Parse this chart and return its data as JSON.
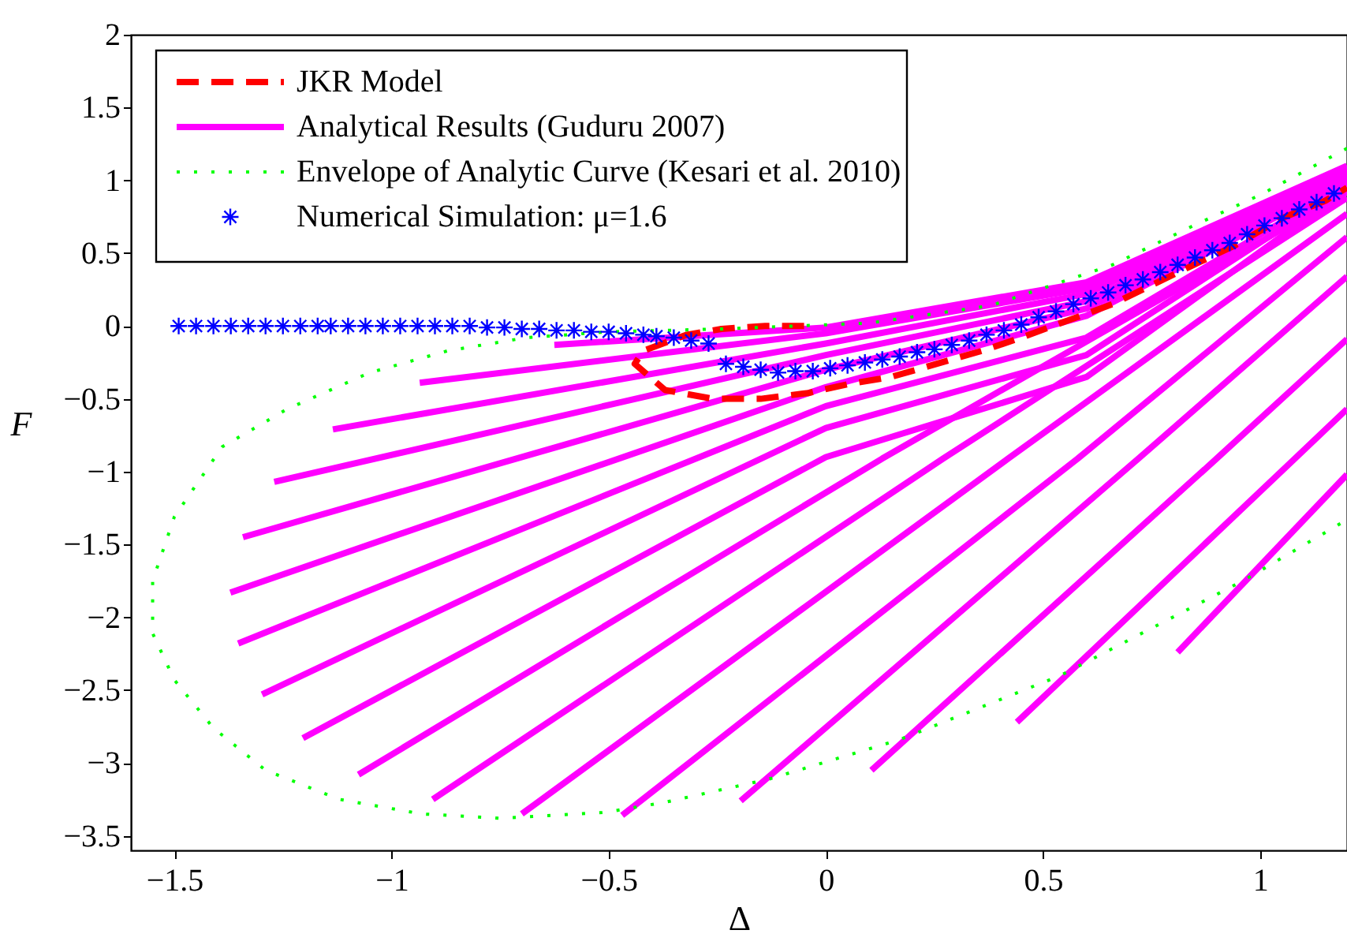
{
  "chart_data": {
    "type": "line",
    "xlabel": "Δ",
    "ylabel": "F",
    "xlim": [
      -1.6,
      1.2
    ],
    "ylim": [
      -3.6,
      2
    ],
    "xticks": [
      -1.5,
      -1,
      -0.5,
      0,
      0.5,
      1
    ],
    "yticks": [
      -3.5,
      -3,
      -2.5,
      -2,
      -1.5,
      -1,
      -0.5,
      0,
      0.5,
      1,
      1.5,
      2
    ],
    "grid": false,
    "legend": "top left",
    "series": [
      {
        "name": "JKR Model",
        "line_style": "dashed",
        "color": "#ff0000",
        "x": [
          -0.05,
          -0.14,
          -0.24,
          -0.32,
          -0.42,
          -0.44,
          -0.37,
          -0.26,
          -0.15,
          -0.04,
          0.05,
          0.15,
          0.36,
          0.45,
          0.55,
          0.66,
          0.75,
          0.84,
          0.94,
          1.05,
          1.15,
          1.2
        ],
        "values": [
          0.0,
          0.0,
          -0.02,
          -0.06,
          -0.17,
          -0.26,
          -0.44,
          -0.5,
          -0.5,
          -0.46,
          -0.4,
          -0.35,
          -0.17,
          -0.08,
          0.03,
          0.15,
          0.28,
          0.41,
          0.55,
          0.74,
          0.86,
          0.95
        ]
      },
      {
        "name": "Analytical Results (Guduru 2007)",
        "line_style": "solid",
        "color": "#ff00ff",
        "x": [
          -0.625,
          0,
          0.6,
          1.2,
          null,
          -0.935,
          0,
          0.6,
          1.2,
          null,
          -1.135,
          0,
          0.6,
          1.2,
          null,
          -1.27,
          0,
          0.6,
          1.2,
          null,
          -1.342,
          0,
          0.6,
          1.2,
          null,
          -1.371,
          0,
          0.6,
          1.2,
          null,
          -1.353,
          0,
          0.6,
          1.2,
          null,
          -1.298,
          0,
          0.6,
          1.2,
          null,
          -1.204,
          0,
          0.6,
          1.2,
          null,
          -1.076,
          0.13,
          1.2,
          null,
          -0.905,
          0.27,
          1.2,
          null,
          -0.7,
          0.42,
          1.2,
          null,
          -0.469,
          0.58,
          1.2,
          null,
          -0.196,
          0.72,
          1.2,
          null,
          0.105,
          0.9,
          1.2,
          null,
          0.44,
          1.08,
          1.2,
          null,
          0.81,
          1.2
        ],
        "values": [
          -0.13,
          -0.01,
          0.3,
          1.1,
          null,
          -0.39,
          -0.05,
          0.26,
          1.08,
          null,
          -0.71,
          -0.12,
          0.22,
          1.06,
          null,
          -1.07,
          -0.2,
          0.17,
          1.04,
          null,
          -1.45,
          -0.3,
          0.12,
          1.02,
          null,
          -1.83,
          -0.42,
          0.07,
          1.0,
          null,
          -2.18,
          -0.55,
          -0.08,
          0.98,
          null,
          -2.53,
          -0.7,
          -0.2,
          0.96,
          null,
          -2.83,
          -0.9,
          -0.35,
          0.94,
          null,
          -3.08,
          -0.91,
          0.92,
          null,
          -3.25,
          -0.91,
          0.88,
          null,
          -3.35,
          -0.91,
          0.77,
          null,
          -3.36,
          -0.91,
          0.61,
          null,
          -3.26,
          -0.91,
          0.34,
          null,
          -3.05,
          -0.91,
          -0.09,
          null,
          -2.72,
          -0.91,
          -0.57,
          null,
          -2.24,
          -1.02
        ]
      },
      {
        "name": "Envelope of Analytic Curve (Kesari et al. 2010)",
        "line_style": "dotted",
        "color": "#00ff00",
        "x": [
          1.2,
          1.0,
          0.84,
          0.66,
          0.38,
          0.1,
          -0.24,
          -0.5,
          -0.69,
          -0.87,
          -1.05,
          -1.24,
          -1.39,
          -1.5,
          -1.55,
          -1.55,
          -1.5,
          -1.41,
          -1.29,
          -1.12,
          -0.93,
          -0.75,
          -0.51,
          -0.37,
          -0.13,
          0.17,
          0.54,
          0.96,
          1.2
        ],
        "values": [
          1.22,
          0.9,
          0.68,
          0.42,
          0.14,
          0.02,
          -0.02,
          -0.04,
          -0.08,
          -0.17,
          -0.32,
          -0.57,
          -0.83,
          -1.31,
          -1.75,
          -2.11,
          -2.43,
          -2.76,
          -3.05,
          -3.25,
          -3.35,
          -3.38,
          -3.34,
          -3.27,
          -3.11,
          -2.84,
          -2.4,
          -1.75,
          -1.33
        ]
      },
      {
        "name": "Numerical Simulation: μ=1.6",
        "type": "scatter",
        "marker": "cross",
        "color": "#0000ff",
        "x": [
          -1.49,
          -1.45,
          -1.41,
          -1.37,
          -1.33,
          -1.29,
          -1.25,
          -1.21,
          -1.17,
          -1.14,
          -1.1,
          -1.06,
          -1.02,
          -0.98,
          -0.94,
          -0.9,
          -0.86,
          -0.82,
          -0.78,
          -0.74,
          -0.7,
          -0.66,
          -0.62,
          -0.58,
          -0.54,
          -0.5,
          -0.46,
          -0.42,
          -0.39,
          -0.35,
          -0.31,
          -0.27,
          -0.23,
          -0.19,
          -0.15,
          -0.11,
          -0.07,
          -0.03,
          0.01,
          0.05,
          0.09,
          0.13,
          0.17,
          0.21,
          0.25,
          0.29,
          0.33,
          0.37,
          0.41,
          0.45,
          0.49,
          0.53,
          0.57,
          0.61,
          0.65,
          0.69,
          0.73,
          0.77,
          0.81,
          0.85,
          0.89,
          0.93,
          0.97,
          1.01,
          1.05,
          1.09,
          1.13,
          1.17
        ],
        "values": [
          0,
          0,
          0,
          0,
          0,
          0,
          0,
          0,
          0,
          0,
          0,
          0,
          0,
          0,
          0,
          0,
          0,
          0,
          -0.01,
          -0.01,
          -0.02,
          -0.02,
          -0.03,
          -0.03,
          -0.04,
          -0.04,
          -0.05,
          -0.06,
          -0.07,
          -0.08,
          -0.1,
          -0.12,
          -0.26,
          -0.28,
          -0.3,
          -0.32,
          -0.31,
          -0.31,
          -0.29,
          -0.27,
          -0.25,
          -0.23,
          -0.21,
          -0.18,
          -0.16,
          -0.13,
          -0.1,
          -0.06,
          -0.03,
          0.01,
          0.06,
          0.1,
          0.15,
          0.19,
          0.23,
          0.28,
          0.32,
          0.37,
          0.42,
          0.47,
          0.52,
          0.57,
          0.63,
          0.69,
          0.74,
          0.8,
          0.85,
          0.91
        ]
      }
    ]
  }
}
